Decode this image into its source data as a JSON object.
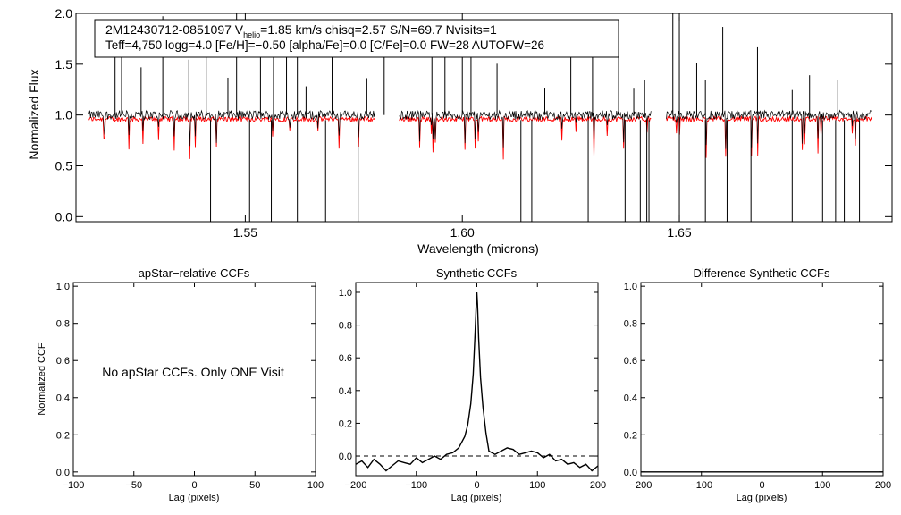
{
  "spectrum": {
    "info_line1": {
      "star_id": "2M12430712-0851097",
      "v_label": "V",
      "v_sub": "helio",
      "v_value": "=1.85 km/s",
      "rest": "chisq=2.57  S/N=69.7  Nvisits=1"
    },
    "info_line2": "Teff=4,750 logg=4.0 [Fe/H]=−0.50 [alpha/Fe]=0.0 [C/Fe]=0.0 FW=28 AUTOFW=26"
  },
  "ccf_panels": {
    "ylabel": "Normalized CCF",
    "no_data_message": "No apStar CCFs.  Only ONE Visit"
  },
  "colors": {
    "observed": "#000000",
    "model": "#ff0000"
  },
  "chart_data": [
    {
      "id": "spectrum",
      "type": "line",
      "xlabel": "Wavelength (microns)",
      "ylabel": "Normalized Flux",
      "xlim": [
        1.511,
        1.699
      ],
      "ylim": [
        -0.05,
        2.0
      ],
      "xticks": [
        1.55,
        1.6,
        1.65
      ],
      "xtick_labels": [
        "1.55",
        "1.60",
        "1.65"
      ],
      "yticks": [
        0,
        0.5,
        1.0,
        1.5,
        2.0
      ],
      "ytick_labels": [
        "0.0",
        "0.5",
        "1.0",
        "1.5",
        "2.0"
      ],
      "segments": [
        [
          1.514,
          1.58
        ],
        [
          1.5855,
          1.6435
        ],
        [
          1.647,
          1.6945
        ]
      ],
      "spikes_up": [
        1.52,
        1.5215,
        1.526,
        1.531,
        1.537,
        1.541,
        1.546,
        1.548,
        1.5535,
        1.5565,
        1.5595,
        1.562,
        1.564,
        1.57,
        1.578,
        1.582,
        1.593,
        1.596,
        1.6,
        1.602,
        1.608,
        1.619,
        1.625,
        1.63,
        1.636,
        1.6395,
        1.642,
        1.6485,
        1.65,
        1.654,
        1.656,
        1.66,
        1.668,
        1.676,
        1.68,
        1.6865
      ],
      "spikes_down": [
        1.542,
        1.551,
        1.556,
        1.562,
        1.5685,
        1.576,
        1.6135,
        1.616,
        1.629,
        1.6375,
        1.641,
        1.6425,
        1.643,
        1.65,
        1.656,
        1.661,
        1.6665,
        1.676,
        1.683,
        1.686,
        1.688,
        1.6915
      ],
      "series": [
        {
          "name": "observed",
          "continuum": 1.0
        },
        {
          "name": "model",
          "continuum": 0.96
        }
      ]
    },
    {
      "id": "apstar-ccf",
      "type": "line",
      "title": "apStar−relative CCFs",
      "xlabel": "Lag (pixels)",
      "ylabel": "Normalized CCF",
      "xlim": [
        -100,
        100
      ],
      "ylim": [
        -0.02,
        1.02
      ],
      "xticks": [
        -100,
        -50,
        0,
        50,
        100
      ],
      "xtick_labels": [
        "−100",
        "−50",
        "0",
        "50",
        "100"
      ],
      "yticks": [
        0,
        0.2,
        0.4,
        0.6,
        0.8,
        1.0
      ],
      "ytick_labels": [
        "0.0",
        "0.2",
        "0.4",
        "0.6",
        "0.8",
        "1.0"
      ],
      "series": []
    },
    {
      "id": "synthetic-ccf",
      "type": "line",
      "title": "Synthetic CCFs",
      "xlabel": "Lag (pixels)",
      "xlim": [
        -200,
        200
      ],
      "ylim": [
        -0.12,
        1.06
      ],
      "xticks": [
        -200,
        -100,
        0,
        100,
        200
      ],
      "xtick_labels": [
        "−200",
        "−100",
        "0",
        "100",
        "200"
      ],
      "yticks": [
        0,
        0.2,
        0.4,
        0.6,
        0.8,
        1.0
      ],
      "ytick_labels": [
        "0.0",
        "0.2",
        "0.4",
        "0.6",
        "0.8",
        "1.0"
      ],
      "zero_line": 0.0,
      "series": [
        {
          "x": [
            -200,
            -190,
            -180,
            -170,
            -160,
            -150,
            -140,
            -130,
            -120,
            -110,
            -100,
            -90,
            -80,
            -70,
            -60,
            -50,
            -40,
            -30,
            -20,
            -15,
            -10,
            -6,
            -3,
            -1,
            0,
            1,
            3,
            6,
            10,
            15,
            20,
            30,
            40,
            50,
            60,
            70,
            80,
            90,
            100,
            110,
            120,
            130,
            140,
            150,
            160,
            170,
            180,
            190,
            200
          ],
          "y": [
            -0.05,
            -0.03,
            -0.07,
            -0.02,
            -0.05,
            -0.09,
            -0.06,
            -0.03,
            -0.04,
            -0.05,
            -0.01,
            -0.04,
            -0.02,
            0.0,
            -0.02,
            0.01,
            0.02,
            0.05,
            0.12,
            0.19,
            0.32,
            0.5,
            0.75,
            0.93,
            1.0,
            0.93,
            0.72,
            0.48,
            0.3,
            0.14,
            0.03,
            0.01,
            0.03,
            0.05,
            0.04,
            0.01,
            0.02,
            0.03,
            0.02,
            -0.01,
            0.01,
            -0.03,
            -0.02,
            -0.05,
            -0.04,
            -0.07,
            -0.05,
            -0.09,
            -0.06
          ]
        }
      ]
    },
    {
      "id": "difference-ccf",
      "type": "line",
      "title": "Difference Synthetic CCFs",
      "xlabel": "Lag (pixels)",
      "xlim": [
        -200,
        200
      ],
      "ylim": [
        -0.02,
        1.02
      ],
      "xticks": [
        -200,
        -100,
        0,
        100,
        200
      ],
      "xtick_labels": [
        "−200",
        "−100",
        "0",
        "100",
        "200"
      ],
      "yticks": [
        0,
        0.2,
        0.4,
        0.6,
        0.8,
        1.0
      ],
      "ytick_labels": [
        "0.0",
        "0.2",
        "0.4",
        "0.6",
        "0.8",
        "1.0"
      ],
      "series": [
        {
          "x": [
            -200,
            200
          ],
          "y": [
            0.0,
            0.0
          ]
        }
      ]
    }
  ]
}
